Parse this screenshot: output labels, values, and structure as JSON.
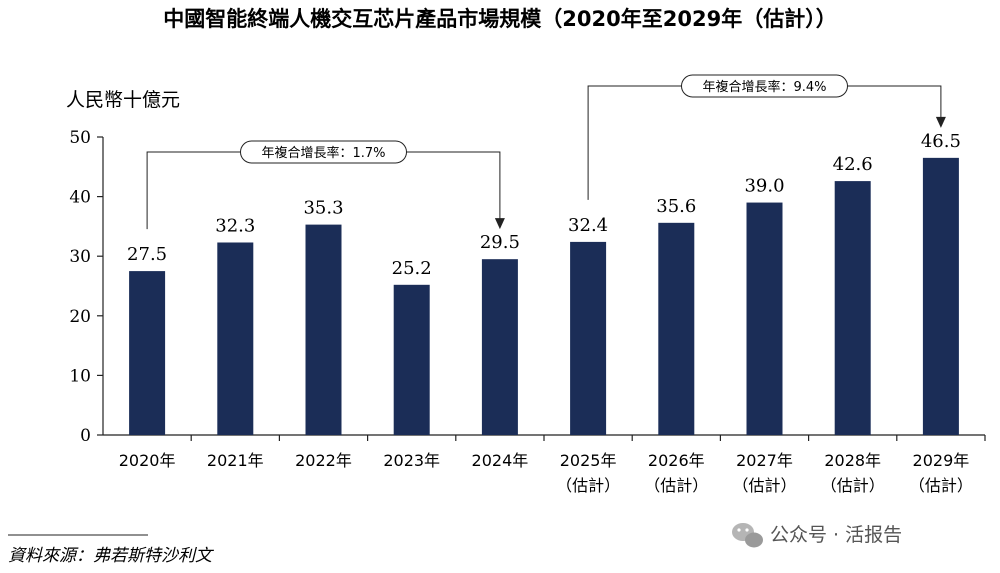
{
  "title": "中國智能終端人機交互芯片產品市場規模（2020年至2029年（估計））",
  "source": "資料來源：弗若斯特沙利文",
  "watermark": "公众号 · 活报告",
  "colors": {
    "bar": "#1b2d57",
    "axis": "#222222"
  },
  "cagr_labels": [
    "年複合增長率：1.7%",
    "年複合增長率：9.4%"
  ],
  "chart_data": {
    "type": "bar",
    "title": "中國智能終端人機交互芯片產品市場規模（2020年至2029年（估計））",
    "ylabel": "人民幣十億元",
    "xlabel": "",
    "ylim": [
      0,
      50
    ],
    "yticks": [
      0,
      10,
      20,
      30,
      40,
      50
    ],
    "categories": [
      "2020年",
      "2021年",
      "2022年",
      "2023年",
      "2024年",
      "2025年",
      "2026年",
      "2027年",
      "2028年",
      "2029年"
    ],
    "category_sublabels": [
      "",
      "",
      "",
      "",
      "",
      "（估計）",
      "（估計）",
      "（估計）",
      "（估計）",
      "（估計）"
    ],
    "values": [
      27.5,
      32.3,
      35.3,
      25.2,
      29.5,
      32.4,
      35.6,
      39.0,
      42.6,
      46.5
    ],
    "value_labels": [
      "27.5",
      "32.3",
      "35.3",
      "25.2",
      "29.5",
      "32.4",
      "35.6",
      "39.0",
      "42.6",
      "46.5"
    ],
    "annotations": [
      {
        "text": "年複合增長率：1.7%",
        "from_category": "2020年",
        "to_category": "2024年"
      },
      {
        "text": "年複合增長率：9.4%",
        "from_category": "2025年",
        "to_category": "2029年"
      }
    ]
  }
}
